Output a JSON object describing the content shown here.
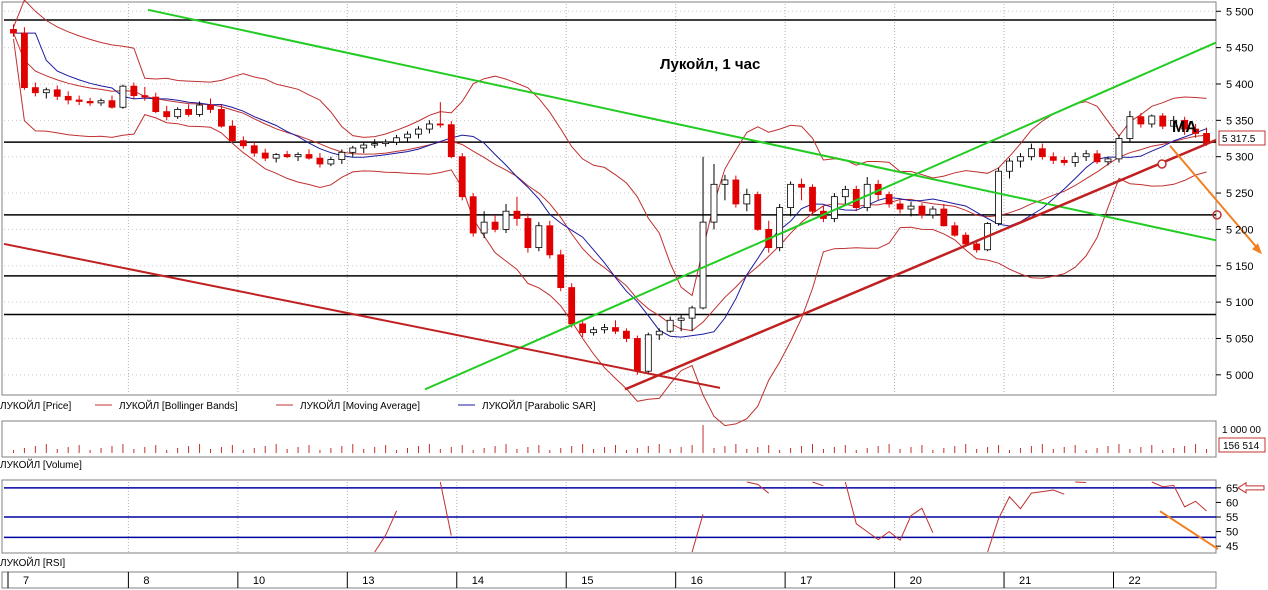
{
  "chart_data": {
    "type": "candlestick",
    "title": "Лукойл,  1 час",
    "annotation": "MA",
    "price_axis": {
      "ticks": [
        "5 500",
        "5 450",
        "5 400",
        "5 350",
        "5 300",
        "5 250",
        "5 200",
        "5 150",
        "5 100",
        "5 050",
        "5 000"
      ],
      "tick_values": [
        5500,
        5450,
        5400,
        5350,
        5300,
        5250,
        5200,
        5150,
        5100,
        5050,
        5000
      ],
      "ylim": [
        4975,
        5510
      ],
      "last_price_label": "5 317.5",
      "last_price": 5317.5
    },
    "day_labels": [
      "7",
      "8",
      "10",
      "13",
      "14",
      "15",
      "16",
      "17",
      "20",
      "21",
      "22"
    ],
    "day_starts": [
      0,
      11,
      21,
      31,
      41,
      51,
      61,
      71,
      81,
      91,
      101
    ],
    "candle_count": 110,
    "candles": [
      [
        5475,
        5482,
        5465,
        5470
      ],
      [
        5470,
        5478,
        5392,
        5395
      ],
      [
        5395,
        5402,
        5383,
        5388
      ],
      [
        5388,
        5395,
        5380,
        5392
      ],
      [
        5392,
        5398,
        5378,
        5383
      ],
      [
        5383,
        5390,
        5372,
        5378
      ],
      [
        5378,
        5384,
        5371,
        5376
      ],
      [
        5376,
        5381,
        5370,
        5374
      ],
      [
        5374,
        5380,
        5370,
        5377
      ],
      [
        5377,
        5384,
        5366,
        5368
      ],
      [
        5368,
        5399,
        5366,
        5397
      ],
      [
        5397,
        5402,
        5380,
        5384
      ],
      [
        5384,
        5396,
        5377,
        5382
      ],
      [
        5382,
        5388,
        5360,
        5362
      ],
      [
        5362,
        5370,
        5350,
        5355
      ],
      [
        5355,
        5368,
        5352,
        5365
      ],
      [
        5365,
        5372,
        5355,
        5358
      ],
      [
        5358,
        5376,
        5355,
        5371
      ],
      [
        5371,
        5380,
        5360,
        5365
      ],
      [
        5365,
        5372,
        5340,
        5342
      ],
      [
        5342,
        5350,
        5320,
        5322
      ],
      [
        5322,
        5328,
        5311,
        5315
      ],
      [
        5315,
        5320,
        5300,
        5305
      ],
      [
        5305,
        5311,
        5294,
        5298
      ],
      [
        5298,
        5305,
        5292,
        5303
      ],
      [
        5303,
        5308,
        5298,
        5300
      ],
      [
        5300,
        5306,
        5294,
        5303
      ],
      [
        5303,
        5310,
        5296,
        5298
      ],
      [
        5298,
        5305,
        5285,
        5290
      ],
      [
        5290,
        5300,
        5287,
        5296
      ],
      [
        5296,
        5310,
        5290,
        5306
      ],
      [
        5306,
        5315,
        5300,
        5312
      ],
      [
        5312,
        5320,
        5305,
        5316
      ],
      [
        5316,
        5324,
        5312,
        5318
      ],
      [
        5318,
        5324,
        5314,
        5320
      ],
      [
        5320,
        5330,
        5316,
        5326
      ],
      [
        5326,
        5335,
        5320,
        5331
      ],
      [
        5331,
        5342,
        5325,
        5338
      ],
      [
        5338,
        5350,
        5332,
        5345
      ],
      [
        5345,
        5375,
        5340,
        5344
      ],
      [
        5344,
        5349,
        5298,
        5300
      ],
      [
        5300,
        5305,
        5240,
        5245
      ],
      [
        5245,
        5250,
        5190,
        5195
      ],
      [
        5195,
        5225,
        5188,
        5210
      ],
      [
        5210,
        5220,
        5196,
        5200
      ],
      [
        5200,
        5235,
        5195,
        5225
      ],
      [
        5225,
        5245,
        5205,
        5215
      ],
      [
        5215,
        5222,
        5168,
        5175
      ],
      [
        5175,
        5210,
        5170,
        5205
      ],
      [
        5205,
        5212,
        5160,
        5165
      ],
      [
        5165,
        5172,
        5115,
        5120
      ],
      [
        5120,
        5126,
        5065,
        5070
      ],
      [
        5070,
        5075,
        5052,
        5058
      ],
      [
        5058,
        5066,
        5054,
        5062
      ],
      [
        5062,
        5070,
        5057,
        5065
      ],
      [
        5065,
        5075,
        5056,
        5060
      ],
      [
        5060,
        5064,
        5045,
        5050
      ],
      [
        5050,
        5054,
        5000,
        5005
      ],
      [
        5005,
        5058,
        5001,
        5055
      ],
      [
        5055,
        5064,
        5048,
        5060
      ],
      [
        5060,
        5080,
        5058,
        5075
      ],
      [
        5075,
        5082,
        5060,
        5078
      ],
      [
        5078,
        5095,
        5060,
        5092
      ],
      [
        5092,
        5300,
        5090,
        5210
      ],
      [
        5210,
        5290,
        5200,
        5262
      ],
      [
        5262,
        5275,
        5240,
        5268
      ],
      [
        5268,
        5274,
        5230,
        5235
      ],
      [
        5235,
        5256,
        5225,
        5248
      ],
      [
        5248,
        5252,
        5198,
        5200
      ],
      [
        5200,
        5212,
        5168,
        5175
      ],
      [
        5175,
        5235,
        5170,
        5230
      ],
      [
        5230,
        5266,
        5218,
        5262
      ],
      [
        5262,
        5270,
        5240,
        5258
      ],
      [
        5258,
        5262,
        5220,
        5225
      ],
      [
        5225,
        5232,
        5210,
        5215
      ],
      [
        5215,
        5250,
        5210,
        5245
      ],
      [
        5245,
        5260,
        5235,
        5255
      ],
      [
        5255,
        5260,
        5225,
        5230
      ],
      [
        5230,
        5272,
        5225,
        5262
      ],
      [
        5262,
        5268,
        5240,
        5248
      ],
      [
        5248,
        5252,
        5230,
        5235
      ],
      [
        5235,
        5240,
        5222,
        5228
      ],
      [
        5228,
        5238,
        5218,
        5232
      ],
      [
        5232,
        5236,
        5215,
        5220
      ],
      [
        5220,
        5232,
        5215,
        5228
      ],
      [
        5228,
        5235,
        5204,
        5205
      ],
      [
        5205,
        5210,
        5190,
        5192
      ],
      [
        5192,
        5196,
        5178,
        5180
      ],
      [
        5180,
        5186,
        5168,
        5172
      ],
      [
        5172,
        5210,
        5170,
        5208
      ],
      [
        5208,
        5285,
        5205,
        5280
      ],
      [
        5280,
        5298,
        5270,
        5294
      ],
      [
        5294,
        5305,
        5285,
        5300
      ],
      [
        5300,
        5318,
        5295,
        5311
      ],
      [
        5311,
        5318,
        5296,
        5300
      ],
      [
        5300,
        5306,
        5290,
        5295
      ],
      [
        5295,
        5300,
        5288,
        5292
      ],
      [
        5292,
        5306,
        5286,
        5300
      ],
      [
        5300,
        5309,
        5294,
        5304
      ],
      [
        5304,
        5309,
        5290,
        5293
      ],
      [
        5293,
        5300,
        5288,
        5297
      ],
      [
        5297,
        5330,
        5292,
        5325
      ],
      [
        5325,
        5363,
        5320,
        5355
      ],
      [
        5355,
        5360,
        5340,
        5345
      ],
      [
        5345,
        5358,
        5340,
        5356
      ],
      [
        5356,
        5360,
        5338,
        5342
      ],
      [
        5342,
        5356,
        5336,
        5350
      ],
      [
        5350,
        5355,
        5330,
        5338
      ],
      [
        5338,
        5345,
        5326,
        5332
      ],
      [
        5332,
        5340,
        5315,
        5318
      ]
    ],
    "horizontal_levels": [
      5488,
      5320,
      5220,
      5136,
      5083
    ],
    "rsi_axis": {
      "ticks": [
        "65",
        "60",
        "55",
        "50",
        "45"
      ],
      "tick_values": [
        65,
        60,
        55,
        50,
        45
      ],
      "ylim": [
        43,
        67
      ]
    },
    "rsi_levels": [
      65,
      55,
      48
    ],
    "volume_axis": {
      "tick_label": "1 000 00",
      "last_label": "156 514"
    },
    "legend": [
      "ЛУКОЙЛ [Price]",
      "ЛУКОЙЛ [Bollinger Bands]",
      "ЛУКОЙЛ [Moving Average]",
      "ЛУКОЙЛ [Parabolic SAR]"
    ],
    "panel_labels": {
      "volume": "ЛУКОЙЛ [Volume]",
      "rsi": "ЛУКОЙЛ [RSI]"
    },
    "colors": {
      "up": "#ffffff",
      "down": "#e00000",
      "green_lines": "#22cc22",
      "trend_red": "#c02020",
      "band": "#c03030",
      "sar": "#1a1aa0",
      "arrow": "#f08020",
      "level": "#000000",
      "rsi_level": "#0000a0",
      "rsi_line": "#c03030"
    }
  }
}
